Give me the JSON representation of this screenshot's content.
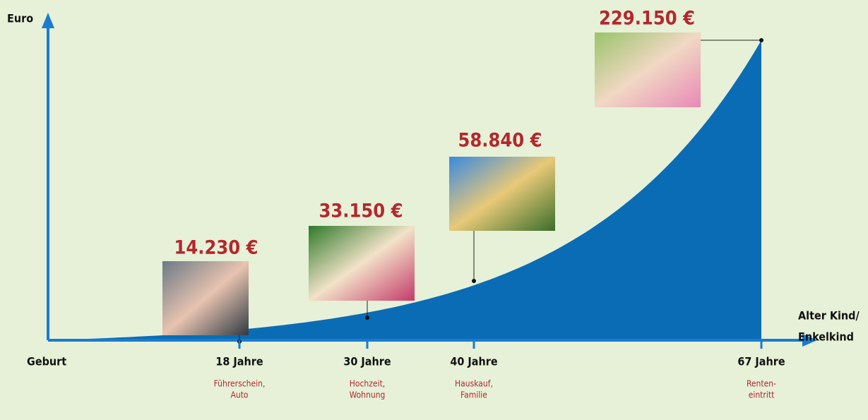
{
  "y_axis_label": "Euro",
  "x_axis_label": [
    "Alter Kind/",
    "Enkelkind"
  ],
  "start_label": "Geburt",
  "milestones": [
    {
      "age": "18 Jahre",
      "amount": "14.230 €",
      "event": [
        "Führerschein,",
        "Auto"
      ]
    },
    {
      "age": "30 Jahre",
      "amount": "33.150 €",
      "event": [
        "Hochzeit,",
        "Wohnung"
      ]
    },
    {
      "age": "40 Jahre",
      "amount": "58.840 €",
      "event": [
        "Hauskauf,",
        "Familie"
      ]
    },
    {
      "age": "67 Jahre",
      "amount": "229.150 €",
      "event": [
        "Renten-",
        "eintritt"
      ]
    }
  ]
}
